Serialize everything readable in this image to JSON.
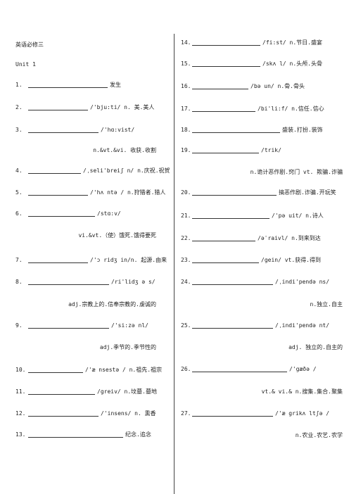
{
  "header": {
    "title": "英语必修三",
    "unit": "Unit 1"
  },
  "items": [
    {
      "number": "1.",
      "text": "发生"
    },
    {
      "number": "2.",
      "text": "/'bju:ti/  n. 美.美人"
    },
    {
      "number": "3.",
      "text": "/'hɑ:vist/",
      "continuation": "n.&vt.&vi. 收获.收割"
    },
    {
      "number": "4.",
      "text": "/ˌseli'breiʃ n/ n.庆祝.祝贺"
    },
    {
      "number": "5.",
      "text": "/'hʌ ntə / n.狩猎者.猎人"
    },
    {
      "number": "6.",
      "text": "/stɑ:v/",
      "continuation": "vi.&vt.（使）饿死.饿得要死"
    },
    {
      "number": "7.",
      "text": "/'ɔ ridʒ in/n. 起源.由来"
    },
    {
      "number": "8.",
      "text": "/ri'lidʒ ə s/",
      "continuation": "adj.宗教上的.信奉宗教的.虔诚的"
    },
    {
      "number": "9.",
      "text": "/'si:zə nl/",
      "continuation": "adj.季节的.季节性的"
    },
    {
      "number": "10.",
      "text": "/'æ nsestə / n.祖先.祖宗"
    },
    {
      "number": "11.",
      "text": "/greiv/ n.坟墓.墓地"
    },
    {
      "number": "12.",
      "text": "/'insens/ n. 熏香"
    },
    {
      "number": "13.",
      "text": "纪念.追念"
    },
    {
      "number": "14.",
      "text": "/fi:st/ n.节日.盛宴"
    },
    {
      "number": "15.",
      "text": "/skʌ l/ n.头颅.头骨"
    },
    {
      "number": "16.",
      "text": "/bə un/ n.骨.骨头"
    },
    {
      "number": "17.",
      "text": "/bi'li:f/ n.信任.信心"
    },
    {
      "number": "18.",
      "text": "盛装.打扮.装饰"
    },
    {
      "number": "19.",
      "text": "/trik/",
      "continuation": "n.诡计恶作剧.窍门  vt. 欺骗.诈骗"
    },
    {
      "number": "20.",
      "text": "搞恶作剧.诈骗.开玩笑"
    },
    {
      "number": "21.",
      "text": "/'pə uit/  n.诗人"
    },
    {
      "number": "22.",
      "text": "/əˈraivl/ n.到来到达"
    },
    {
      "number": "23.",
      "text": "/gein/  vt.获得.得到"
    },
    {
      "number": "24.",
      "text": "/ˌindi'pendə ns/",
      "continuation": "n.独立.自主"
    },
    {
      "number": "25.",
      "text": "/ˌindi'pendə nt/",
      "continuation": "adj. 独立的.自主的"
    },
    {
      "number": "26.",
      "text": "/'gæðə /",
      "continuation": "vt.& vi.& n.搜集.集合.聚集"
    },
    {
      "number": "27.",
      "text": "/'æ grikʌ ltʃə /",
      "continuation": "n.农业.农艺.农学"
    }
  ]
}
